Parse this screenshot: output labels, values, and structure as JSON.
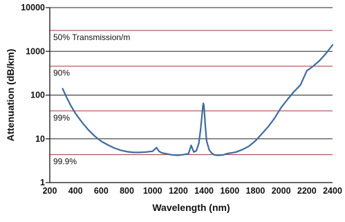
{
  "chart_data": {
    "type": "line",
    "xlabel": "Wavelength (nm)",
    "ylabel": "Attenuation (dB/km)",
    "xlim": [
      200,
      2400
    ],
    "ylim": [
      1,
      10000
    ],
    "y_scale": "log",
    "x_ticks": [
      200,
      400,
      600,
      800,
      1000,
      1200,
      1400,
      1600,
      1800,
      2000,
      2200,
      2400
    ],
    "x_tick_labels": [
      "200",
      "400",
      "600",
      "800",
      "1000",
      "1200",
      "1400",
      "1600",
      "1800",
      "2000",
      "2200",
      "2400"
    ],
    "y_ticks": [
      1,
      10,
      100,
      1000,
      10000
    ],
    "y_tick_labels": [
      "1",
      "10",
      "100",
      "1000",
      "10000"
    ],
    "grid": {
      "horizontal_at_decades": true,
      "vertical": false,
      "major_color": "#222222"
    },
    "transmission_lines": [
      {
        "label": "50% Transmission/m",
        "value": 3010
      },
      {
        "label": "90%",
        "value": 458
      },
      {
        "label": "99%",
        "value": 43.6
      },
      {
        "label": "99.9%",
        "value": 4.35
      }
    ],
    "transmission_line_color": "#a0343a",
    "series": [
      {
        "color": "#3d6b9e",
        "x": [
          300,
          330,
          360,
          400,
          450,
          500,
          550,
          600,
          650,
          700,
          750,
          800,
          850,
          900,
          950,
          1000,
          1030,
          1050,
          1070,
          1100,
          1150,
          1200,
          1250,
          1280,
          1300,
          1320,
          1340,
          1360,
          1375,
          1390,
          1395,
          1400,
          1410,
          1420,
          1440,
          1460,
          1480,
          1500,
          1520,
          1550,
          1580,
          1600,
          1620,
          1650,
          1700,
          1750,
          1800,
          1850,
          1900,
          1950,
          2000,
          2050,
          2100,
          2150,
          2200,
          2250,
          2300,
          2350,
          2400
        ],
        "y": [
          140,
          90,
          60,
          38,
          24,
          16,
          11.5,
          8.8,
          7.3,
          6.2,
          5.5,
          5.1,
          4.9,
          4.9,
          5.0,
          5.2,
          6.3,
          5.2,
          4.8,
          4.6,
          4.3,
          4.2,
          4.4,
          4.6,
          7.1,
          5.0,
          5.3,
          8.0,
          18,
          52,
          65,
          55,
          20,
          9.0,
          5.6,
          4.7,
          4.3,
          4.2,
          4.2,
          4.3,
          4.6,
          4.7,
          4.8,
          5.0,
          5.7,
          6.8,
          9.0,
          13,
          19,
          30,
          52,
          80,
          120,
          170,
          360,
          460,
          620,
          900,
          1400
        ]
      }
    ]
  }
}
